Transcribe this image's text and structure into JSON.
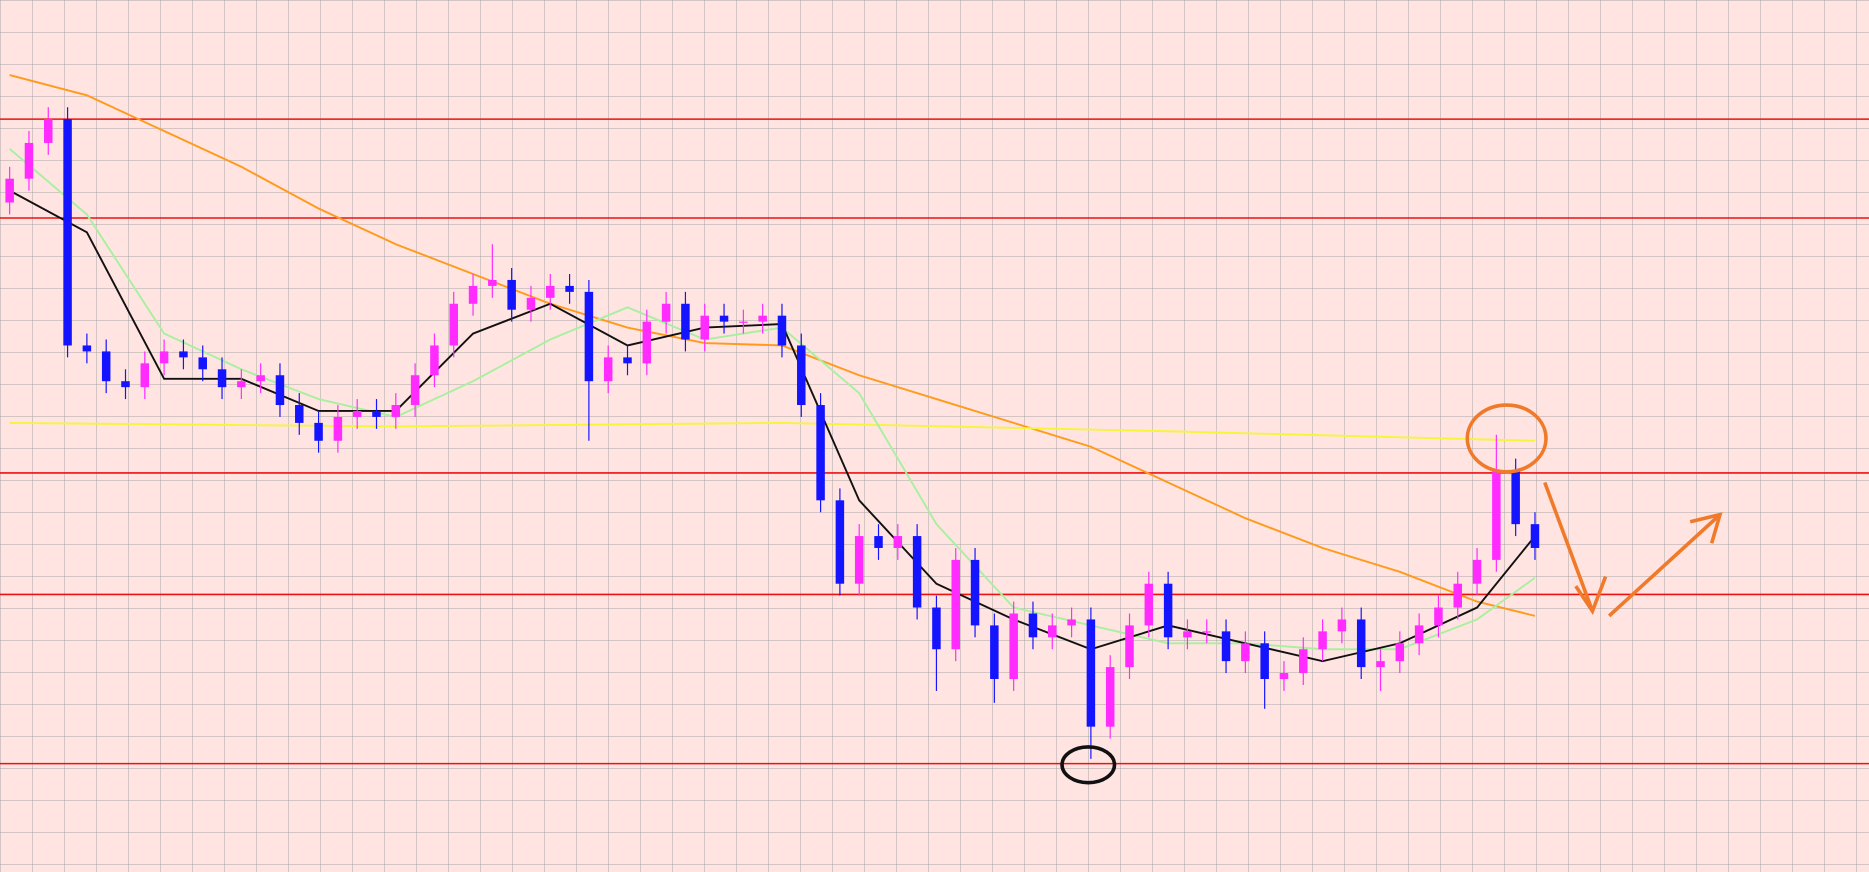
{
  "chart_data": {
    "type": "candlestick",
    "grid": true,
    "xlim": [
      -0.5,
      96.3
    ],
    "ylim": [
      0,
      732
    ],
    "x": [
      0,
      1,
      2,
      3,
      4,
      5,
      6,
      7,
      8,
      9,
      10,
      11,
      12,
      13,
      14,
      15,
      16,
      17,
      18,
      19,
      20,
      21,
      22,
      23,
      24,
      25,
      26,
      27,
      28,
      29,
      30,
      31,
      32,
      33,
      34,
      35,
      36,
      37,
      38,
      39,
      40,
      41,
      42,
      43,
      44,
      45,
      46,
      47,
      48,
      49,
      50,
      51,
      52,
      53,
      54,
      55,
      56,
      57,
      58,
      59,
      60,
      61,
      62,
      63,
      64,
      65,
      66,
      67,
      68,
      69,
      70,
      71,
      72,
      73,
      74,
      75,
      76,
      77,
      78,
      79
    ],
    "up_color": "#ff2bff",
    "down_color": "#1414ff",
    "open": [
      562,
      582,
      612,
      632,
      442,
      437,
      412,
      407,
      427,
      437,
      432,
      422,
      407,
      412,
      417,
      392,
      377,
      362,
      382,
      387,
      382,
      392,
      417,
      442,
      477,
      492,
      497,
      472,
      482,
      492,
      487,
      412,
      432,
      427,
      462,
      477,
      447,
      467,
      462,
      462,
      467,
      442,
      392,
      312,
      242,
      282,
      272,
      282,
      222,
      187,
      262,
      207,
      162,
      217,
      197,
      207,
      212,
      122,
      172,
      207,
      242,
      197,
      202,
      202,
      177,
      192,
      162,
      167,
      187,
      202,
      212,
      172,
      177,
      192,
      207,
      222,
      242,
      262,
      337,
      292
    ],
    "high": [
      592,
      622,
      642,
      642,
      452,
      447,
      422,
      437,
      447,
      447,
      442,
      432,
      422,
      427,
      427,
      402,
      387,
      392,
      397,
      397,
      402,
      427,
      452,
      487,
      502,
      527,
      507,
      492,
      502,
      502,
      497,
      442,
      442,
      472,
      487,
      487,
      477,
      477,
      472,
      477,
      477,
      452,
      402,
      322,
      292,
      292,
      292,
      292,
      232,
      272,
      272,
      217,
      227,
      227,
      217,
      222,
      222,
      182,
      217,
      252,
      252,
      212,
      212,
      212,
      202,
      202,
      177,
      197,
      212,
      222,
      222,
      187,
      202,
      217,
      232,
      252,
      272,
      367,
      347,
      302
    ],
    "low": [
      552,
      572,
      602,
      432,
      427,
      402,
      397,
      397,
      417,
      422,
      412,
      397,
      397,
      402,
      382,
      367,
      352,
      352,
      372,
      372,
      372,
      382,
      407,
      432,
      467,
      482,
      462,
      462,
      472,
      477,
      362,
      402,
      417,
      417,
      452,
      437,
      437,
      452,
      452,
      452,
      432,
      382,
      302,
      232,
      232,
      262,
      262,
      212,
      152,
      177,
      197,
      142,
      152,
      187,
      187,
      197,
      95,
      112,
      162,
      197,
      187,
      187,
      192,
      167,
      167,
      137,
      152,
      157,
      177,
      192,
      162,
      152,
      167,
      182,
      197,
      212,
      232,
      252,
      282,
      262
    ],
    "close": [
      582,
      612,
      632,
      442,
      437,
      412,
      407,
      427,
      437,
      432,
      422,
      407,
      412,
      417,
      392,
      377,
      362,
      382,
      387,
      382,
      392,
      417,
      442,
      477,
      492,
      497,
      472,
      482,
      492,
      487,
      412,
      432,
      427,
      462,
      477,
      447,
      467,
      462,
      462,
      467,
      442,
      392,
      312,
      242,
      282,
      272,
      282,
      222,
      187,
      262,
      207,
      162,
      217,
      197,
      207,
      212,
      122,
      172,
      207,
      242,
      197,
      202,
      202,
      177,
      192,
      162,
      167,
      187,
      202,
      212,
      172,
      177,
      192,
      207,
      222,
      242,
      262,
      337,
      292,
      272
    ],
    "series": [
      {
        "color": "#ff9a1a",
        "x": [
          0,
          4,
          8,
          12,
          16,
          20,
          24,
          28,
          32,
          36,
          40,
          44,
          48,
          52,
          56,
          60,
          64,
          68,
          72,
          76,
          79
        ],
        "values": [
          669,
          652,
          622,
          592,
          557,
          527,
          502,
          477,
          457,
          444,
          442,
          417,
          397,
          377,
          357,
          327,
          297,
          272,
          252,
          227,
          215
        ]
      },
      {
        "color": "#f5f53a",
        "x": [
          0,
          20,
          40,
          60,
          79
        ],
        "values": [
          377,
          374,
          377,
          370,
          362
        ]
      },
      {
        "color": "#a8f0a0",
        "x": [
          0,
          4,
          8,
          12,
          16,
          20,
          24,
          28,
          32,
          36,
          40,
          44,
          48,
          52,
          56,
          60,
          64,
          68,
          72,
          76,
          79
        ],
        "values": [
          607,
          552,
          452,
          422,
          397,
          382,
          412,
          447,
          474,
          447,
          457,
          402,
          292,
          222,
          207,
          192,
          192,
          187,
          187,
          212,
          247
        ]
      },
      {
        "color": "#111111",
        "x": [
          0,
          4,
          8,
          12,
          16,
          20,
          24,
          28,
          32,
          36,
          40,
          44,
          48,
          52,
          56,
          60,
          64,
          68,
          72,
          76,
          79
        ],
        "values": [
          572,
          537,
          414,
          414,
          387,
          387,
          452,
          477,
          442,
          457,
          460,
          312,
          242,
          212,
          187,
          207,
          192,
          177,
          192,
          222,
          282
        ]
      }
    ],
    "levels": [
      632,
      549,
      335,
      233,
      91
    ],
    "level_color": "#ee1111"
  }
}
